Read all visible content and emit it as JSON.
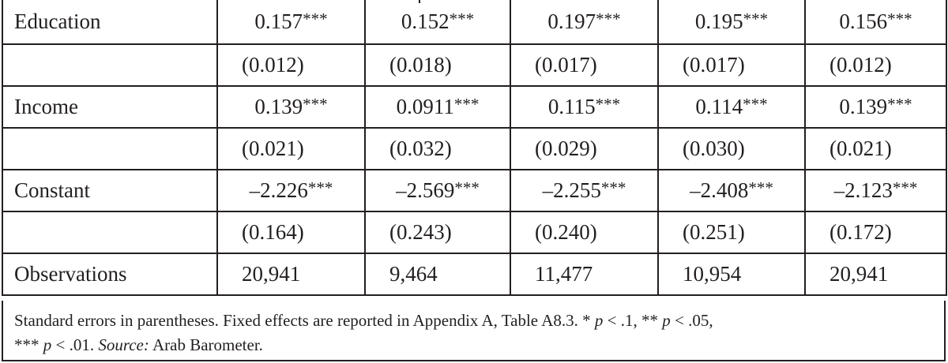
{
  "table": {
    "rows": [
      {
        "label": "Education",
        "kind": "coef",
        "cells": [
          {
            "num": "0.157",
            "stars": "***"
          },
          {
            "num": "0.152",
            "stars": "***"
          },
          {
            "num": "0.197",
            "stars": "***"
          },
          {
            "num": "0.195",
            "stars": "***"
          },
          {
            "num": "0.156",
            "stars": "***"
          }
        ]
      },
      {
        "label": "",
        "kind": "se",
        "cells": [
          {
            "num": "(0.012)"
          },
          {
            "num": "(0.018)"
          },
          {
            "num": "(0.017)"
          },
          {
            "num": "(0.017)"
          },
          {
            "num": "(0.012)"
          }
        ]
      },
      {
        "label": "Income",
        "kind": "coef",
        "cells": [
          {
            "num": "0.139",
            "stars": "***"
          },
          {
            "num": "0.0911",
            "stars": "***"
          },
          {
            "num": "0.115",
            "stars": "***"
          },
          {
            "num": "0.114",
            "stars": "***"
          },
          {
            "num": "0.139",
            "stars": "***"
          }
        ]
      },
      {
        "label": "",
        "kind": "se",
        "cells": [
          {
            "num": "(0.021)"
          },
          {
            "num": "(0.032)"
          },
          {
            "num": "(0.029)"
          },
          {
            "num": "(0.030)"
          },
          {
            "num": "(0.021)"
          }
        ]
      },
      {
        "label": "Constant",
        "kind": "coef",
        "cells": [
          {
            "num": "–2.226",
            "stars": "***"
          },
          {
            "num": "–2.569",
            "stars": "***"
          },
          {
            "num": "–2.255",
            "stars": "***"
          },
          {
            "num": "–2.408",
            "stars": "***"
          },
          {
            "num": "–2.123",
            "stars": "***"
          }
        ]
      },
      {
        "label": "",
        "kind": "se",
        "cells": [
          {
            "num": "(0.164)"
          },
          {
            "num": "(0.243)"
          },
          {
            "num": "(0.240)"
          },
          {
            "num": "(0.251)"
          },
          {
            "num": "(0.172)"
          }
        ]
      },
      {
        "label": "Observations",
        "kind": "obs",
        "cells": [
          {
            "num": "20,941"
          },
          {
            "num": "9,464"
          },
          {
            "num": "11,477"
          },
          {
            "num": "10,954"
          },
          {
            "num": "20,941"
          }
        ]
      }
    ]
  },
  "note": {
    "text1": "Standard errors in parentheses. Fixed effects are reported in Appendix A, Table A8.3. * ",
    "p1": "p",
    "text2": " < .1, ** ",
    "p2": "p",
    "text3": " < .05,",
    "text4": "*** ",
    "p3": "p",
    "text5": " < .01. ",
    "source_label": "Source:",
    "source_value": " Arab Barometer."
  }
}
